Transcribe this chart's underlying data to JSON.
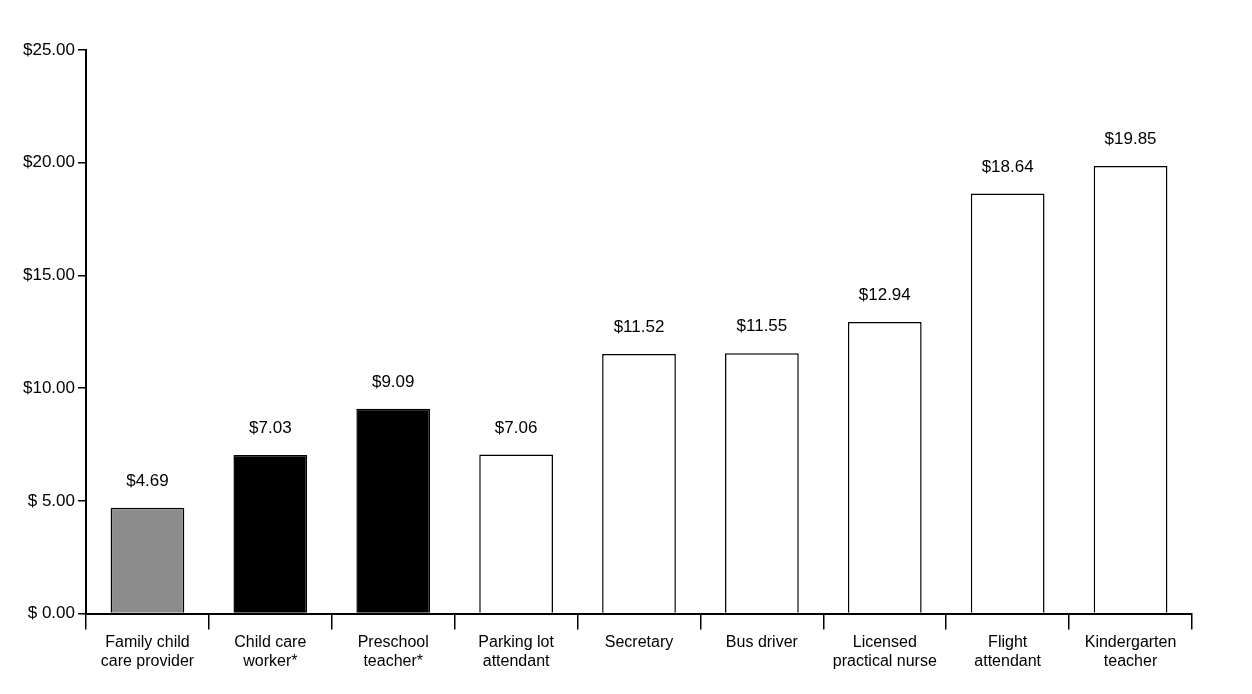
{
  "chart_data": {
    "type": "bar",
    "categories": [
      "Family child care provider",
      "Child care worker*",
      "Preschool teacher*",
      "Parking lot attendant",
      "Secretary",
      "Bus driver",
      "Licensed practical nurse",
      "Flight attendant",
      "Kindergarten teacher"
    ],
    "values": [
      4.69,
      7.03,
      9.09,
      7.06,
      11.52,
      11.55,
      12.94,
      18.64,
      19.85
    ],
    "colors": [
      "#8c8c8c",
      "#000000",
      "#000000",
      "#ffffff",
      "#ffffff",
      "#ffffff",
      "#ffffff",
      "#ffffff",
      "#ffffff"
    ],
    "value_labels": [
      "$4.69",
      "$7.03",
      "$9.09",
      "$7.06",
      "$11.52",
      "$11.55",
      "$12.94",
      "$18.64",
      "$19.85"
    ],
    "ylim": [
      0,
      25
    ],
    "yticks": [
      {
        "value": 0,
        "label": "$ 0.00"
      },
      {
        "value": 5,
        "label": "$ 5.00"
      },
      {
        "value": 10,
        "label": "$10.00"
      },
      {
        "value": 15,
        "label": "$15.00"
      },
      {
        "value": 20,
        "label": "$20.00"
      },
      {
        "value": 25,
        "label": "$25.00"
      }
    ],
    "grid": false,
    "legend": false
  }
}
